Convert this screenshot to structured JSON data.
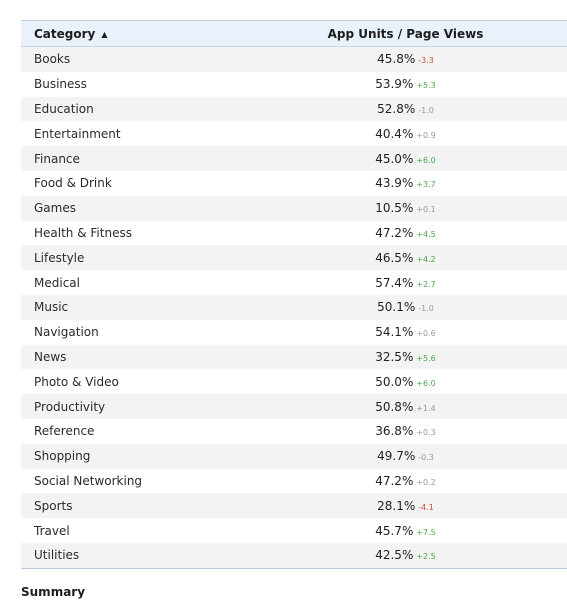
{
  "table": {
    "headers": {
      "category": "Category",
      "metric": "App Units / Page Views"
    },
    "sort_indicator": "▲",
    "rows": [
      {
        "category": "Books",
        "value": "45.8%",
        "change": "-3.3",
        "trend": "neg"
      },
      {
        "category": "Business",
        "value": "53.9%",
        "change": "+5.3",
        "trend": "pos"
      },
      {
        "category": "Education",
        "value": "52.8%",
        "change": "-1.0",
        "trend": "neu"
      },
      {
        "category": "Entertainment",
        "value": "40.4%",
        "change": "+0.9",
        "trend": "neu"
      },
      {
        "category": "Finance",
        "value": "45.0%",
        "change": "+6.0",
        "trend": "pos"
      },
      {
        "category": "Food & Drink",
        "value": "43.9%",
        "change": "+3.7",
        "trend": "pos"
      },
      {
        "category": "Games",
        "value": "10.5%",
        "change": "+0.1",
        "trend": "neu"
      },
      {
        "category": "Health & Fitness",
        "value": "47.2%",
        "change": "+4.5",
        "trend": "pos"
      },
      {
        "category": "Lifestyle",
        "value": "46.5%",
        "change": "+4.2",
        "trend": "pos"
      },
      {
        "category": "Medical",
        "value": "57.4%",
        "change": "+2.7",
        "trend": "pos"
      },
      {
        "category": "Music",
        "value": "50.1%",
        "change": "-1.0",
        "trend": "neu"
      },
      {
        "category": "Navigation",
        "value": "54.1%",
        "change": "+0.6",
        "trend": "neu"
      },
      {
        "category": "News",
        "value": "32.5%",
        "change": "+5.6",
        "trend": "pos"
      },
      {
        "category": "Photo & Video",
        "value": "50.0%",
        "change": "+6.0",
        "trend": "pos"
      },
      {
        "category": "Productivity",
        "value": "50.8%",
        "change": "+1.4",
        "trend": "neu"
      },
      {
        "category": "Reference",
        "value": "36.8%",
        "change": "+0.3",
        "trend": "neu"
      },
      {
        "category": "Shopping",
        "value": "49.7%",
        "change": "-0.3",
        "trend": "neu"
      },
      {
        "category": "Social Networking",
        "value": "47.2%",
        "change": "+0.2",
        "trend": "neu"
      },
      {
        "category": "Sports",
        "value": "28.1%",
        "change": "-4.1",
        "trend": "neg"
      },
      {
        "category": "Travel",
        "value": "45.7%",
        "change": "+7.5",
        "trend": "pos"
      },
      {
        "category": "Utilities",
        "value": "42.5%",
        "change": "+2.5",
        "trend": "pos"
      }
    ]
  },
  "summary": {
    "title": "Summary"
  },
  "colors": {
    "positive": "#49a84a",
    "negative": "#d34b3c",
    "neutral": "#9a9a9a",
    "header_bg": "#e9f1fa"
  }
}
